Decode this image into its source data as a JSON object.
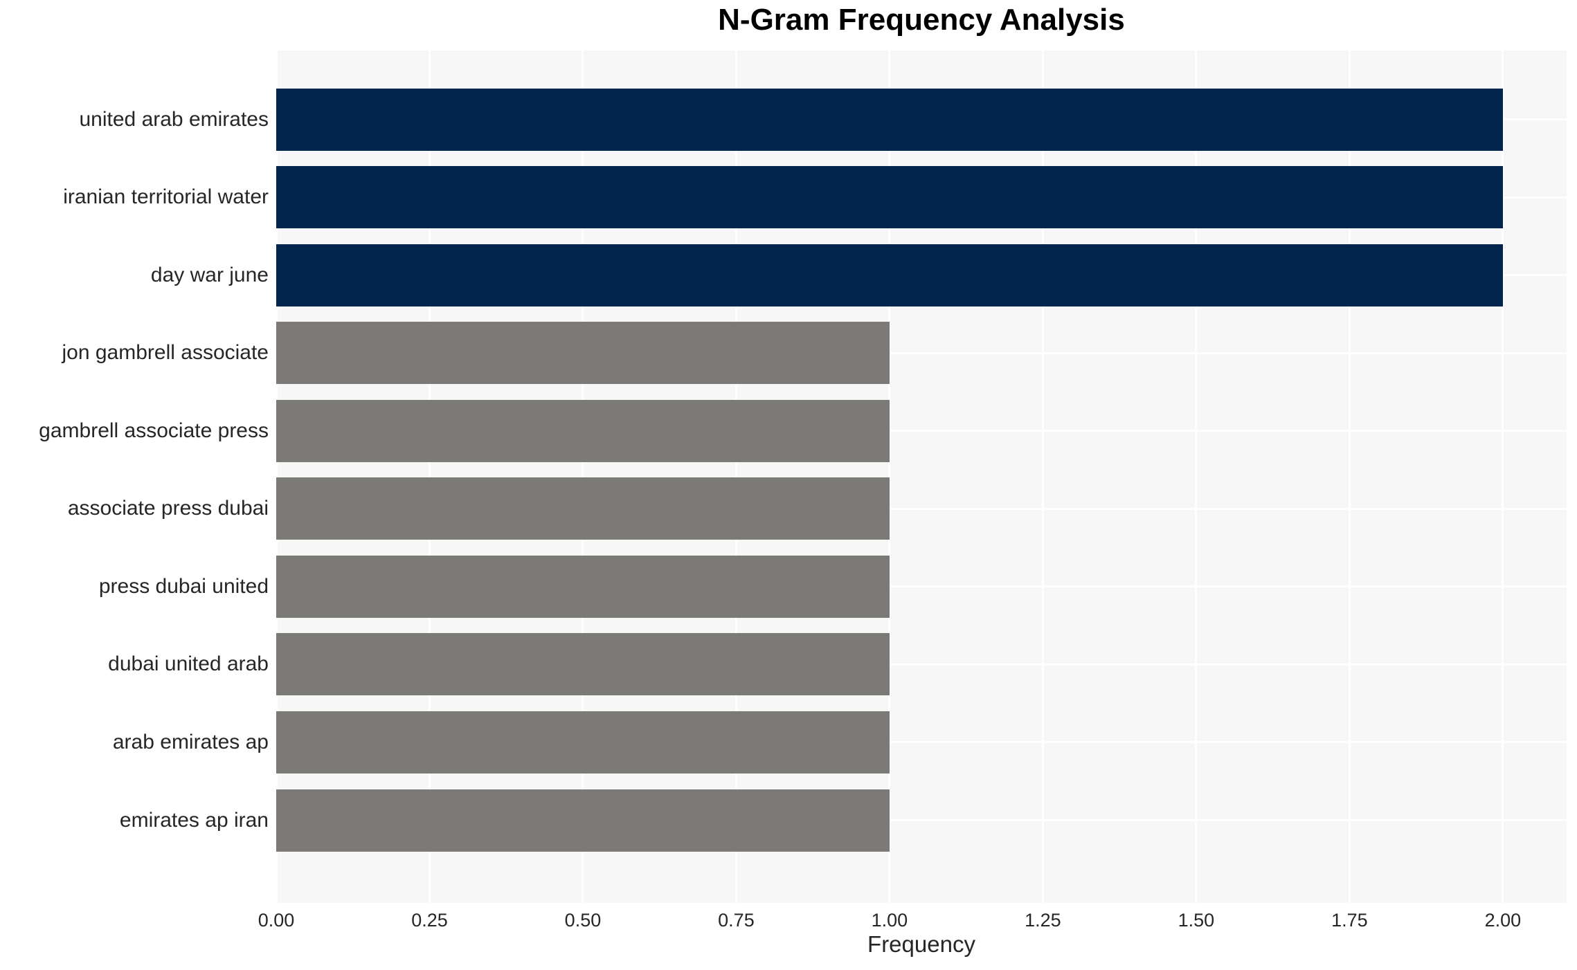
{
  "chart_data": {
    "type": "bar",
    "orientation": "horizontal",
    "title": "N-Gram Frequency Analysis",
    "xlabel": "Frequency",
    "ylabel": "",
    "categories": [
      "united arab emirates",
      "iranian territorial water",
      "day war june",
      "jon gambrell associate",
      "gambrell associate press",
      "associate press dubai",
      "press dubai united",
      "dubai united arab",
      "arab emirates ap",
      "emirates ap iran"
    ],
    "values": [
      2,
      2,
      2,
      1,
      1,
      1,
      1,
      1,
      1,
      1
    ],
    "bar_colors": [
      "#02254D",
      "#02254D",
      "#02254D",
      "#7B7A77",
      "#7B7A77",
      "#7B7A77",
      "#7B7A77",
      "#7B7A77",
      "#7B7A77",
      "#7B7A77"
    ],
    "xlim": [
      0,
      2.104
    ],
    "xticks": [
      0,
      0.25,
      0.5,
      0.75,
      1.0,
      1.25,
      1.5,
      1.75,
      2.0
    ],
    "xtick_labels": [
      "0.00",
      "0.25",
      "0.50",
      "0.75",
      "1.00",
      "1.25",
      "1.50",
      "1.75",
      "2.00"
    ],
    "grid": true,
    "legend": false,
    "colors": {
      "bar_high": "#02254D",
      "bar_low": "#7B7A77",
      "plot_background": "#F7F7F7",
      "gridline": "#FFFFFF",
      "text": "#262626",
      "title_text": "#000000"
    }
  }
}
